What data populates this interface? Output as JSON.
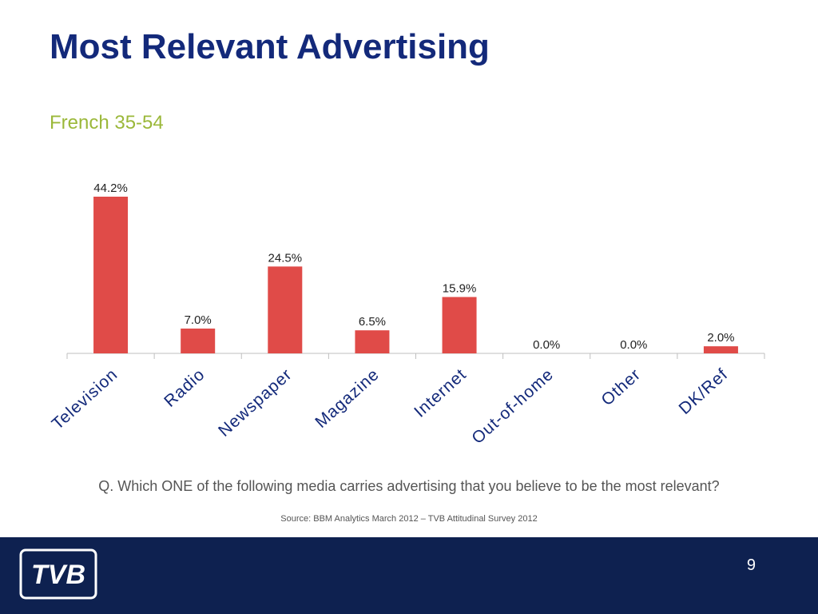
{
  "slide": {
    "title": "Most Relevant Advertising",
    "subtitle": "French 35-54",
    "question": "Q. Which ONE of the following media carries advertising that you believe to be the most relevant?",
    "source": "Source: BBM Analytics March 2012 – TVB Attitudinal Survey 2012",
    "page_number": "9",
    "logo_text": "TVB"
  },
  "colors": {
    "title": "#13297a",
    "subtitle": "#9bb83a",
    "bar": "#e04b48",
    "footer": "#0e2150"
  },
  "chart_data": {
    "type": "bar",
    "categories": [
      "Television",
      "Radio",
      "Newspaper",
      "Magazine",
      "Internet",
      "Out-of-home",
      "Other",
      "DK/Ref"
    ],
    "values": [
      44.2,
      7.0,
      24.5,
      6.5,
      15.9,
      0.0,
      0.0,
      2.0
    ],
    "data_labels": [
      "44.2%",
      "7.0%",
      "24.5%",
      "6.5%",
      "15.9%",
      "0.0%",
      "0.0%",
      "2.0%"
    ],
    "title": "",
    "xlabel": "",
    "ylabel": "",
    "ylim": [
      0,
      44.2
    ],
    "grid": false,
    "legend": "none"
  }
}
